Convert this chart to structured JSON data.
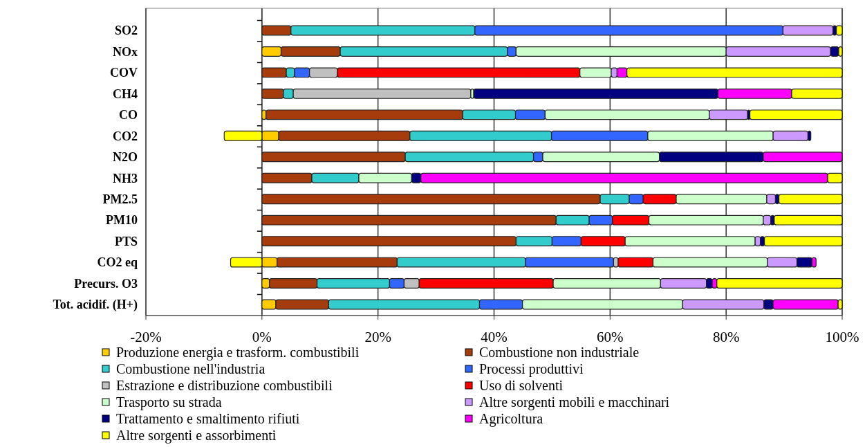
{
  "chart_data": {
    "type": "bar",
    "orientation": "horizontal",
    "stacked": true,
    "grid": "x",
    "legend": "bottom",
    "categories": [
      "SO2",
      "NOx",
      "COV",
      "CH4",
      "CO",
      "CO2",
      "N2O",
      "NH3",
      "PM2.5",
      "PM10",
      "PTS",
      "CO2 eq",
      "Precurs. O3",
      "Tot. acidif. (H+)"
    ],
    "xlim": [
      -20,
      100
    ],
    "xticks": [
      {
        "value": -20,
        "label": "-20%"
      },
      {
        "value": 0,
        "label": "0%"
      },
      {
        "value": 20,
        "label": "20%"
      },
      {
        "value": 40,
        "label": "40%"
      },
      {
        "value": 60,
        "label": "60%"
      },
      {
        "value": 80,
        "label": "80%"
      },
      {
        "value": 100,
        "label": "100%"
      }
    ],
    "series": [
      {
        "name": "Produzione energia e trasform. combustibili",
        "color": "#ffcc00",
        "values": [
          null,
          3.3,
          null,
          null,
          0.7,
          2.9,
          null,
          null,
          null,
          null,
          null,
          2.6,
          1.3,
          2.4
        ]
      },
      {
        "name": "Combustione non industriale",
        "color": "#a63c0c",
        "values": [
          5.0,
          10.2,
          4.2,
          3.7,
          33.9,
          22.6,
          24.7,
          8.6,
          58.3,
          50.7,
          43.8,
          20.7,
          8.2,
          9.1
        ]
      },
      {
        "name": "Combustione nell'industria",
        "color": "#33cccc",
        "values": [
          31.7,
          28.8,
          1.4,
          1.7,
          9.1,
          24.4,
          22.1,
          8.1,
          5.0,
          5.7,
          6.2,
          22.1,
          12.5,
          26.0
        ]
      },
      {
        "name": "Processi produttivi",
        "color": "#3366ff",
        "values": [
          53.1,
          1.5,
          2.6,
          null,
          5.1,
          16.6,
          1.6,
          null,
          2.4,
          4.0,
          5.0,
          15.2,
          2.5,
          7.4
        ]
      },
      {
        "name": "Estrazione e distribuzione combustibili",
        "color": "#c0c0c0",
        "values": [
          null,
          null,
          4.8,
          30.6,
          null,
          null,
          null,
          null,
          null,
          null,
          null,
          0.8,
          2.6,
          null
        ]
      },
      {
        "name": "Uso di solventi",
        "color": "#ff0000",
        "values": [
          null,
          null,
          41.8,
          null,
          null,
          null,
          null,
          null,
          5.7,
          6.3,
          7.6,
          6.0,
          23.1,
          null
        ]
      },
      {
        "name": "Trasporto su strada",
        "color": "#ccffcc",
        "values": [
          null,
          36.2,
          5.4,
          0.5,
          28.3,
          21.6,
          20.1,
          9.1,
          15.6,
          19.7,
          22.4,
          19.7,
          18.5,
          27.6
        ]
      },
      {
        "name": "Altre sorgenti mobili e macchinari",
        "color": "#cc99ff",
        "values": [
          8.6,
          18.0,
          1.0,
          null,
          6.6,
          6.0,
          null,
          null,
          1.5,
          1.3,
          0.9,
          5.1,
          7.9,
          14.0
        ]
      },
      {
        "name": "Trattamento e smaltimento rifiuti",
        "color": "#000080",
        "values": [
          0.6,
          1.4,
          null,
          42.1,
          0.4,
          0.5,
          17.9,
          1.6,
          0.6,
          0.6,
          0.7,
          2.6,
          1.0,
          1.6
        ]
      },
      {
        "name": "Agricoltura",
        "color": "#ff00ff",
        "values": [
          null,
          null,
          1.7,
          12.7,
          null,
          null,
          13.6,
          70.1,
          null,
          null,
          null,
          0.7,
          0.8,
          11.2
        ]
      },
      {
        "name": "Altre sorgenti e assorbimenti",
        "color": "#ffff00",
        "values": [
          1.0,
          0.6,
          37.1,
          8.7,
          15.9,
          -6.5,
          null,
          2.5,
          10.9,
          11.7,
          13.4,
          -5.4,
          21.6,
          0.7
        ]
      }
    ]
  }
}
